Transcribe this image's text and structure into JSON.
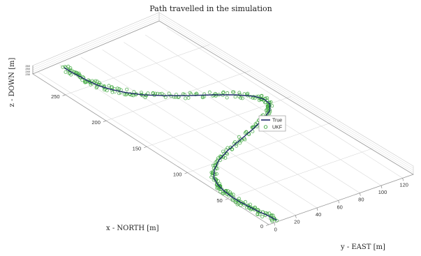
{
  "chart_data": {
    "type": "line3d",
    "title": "Path travelled in the simulation",
    "xlabel": "x - NORTH [m]",
    "ylabel": "y - EAST [m]",
    "zlabel": "z - DOWN [m]",
    "xlim": [
      0,
      290
    ],
    "ylim": [
      -5,
      130
    ],
    "zlim": [
      230,
      260
    ],
    "x_ticks": [
      "0",
      "50",
      "100",
      "150",
      "200",
      "250"
    ],
    "y_ticks": [
      "0",
      "20",
      "40",
      "60",
      "80",
      "100",
      "120"
    ],
    "z_ticks": [
      "230",
      "240",
      "250",
      "260"
    ],
    "grid": true,
    "legend_position": "center",
    "series": [
      {
        "name": "True",
        "color": "#1f2a6b",
        "style": "line",
        "points": [
          {
            "x": 2,
            "y": 4
          },
          {
            "x": 12,
            "y": 3
          },
          {
            "x": 22,
            "y": 1
          },
          {
            "x": 32,
            "y": 0
          },
          {
            "x": 42,
            "y": -1
          },
          {
            "x": 52,
            "y": -1
          },
          {
            "x": 62,
            "y": 0
          },
          {
            "x": 72,
            "y": 2
          },
          {
            "x": 82,
            "y": 6
          },
          {
            "x": 92,
            "y": 14
          },
          {
            "x": 102,
            "y": 26
          },
          {
            "x": 110,
            "y": 40
          },
          {
            "x": 118,
            "y": 58
          },
          {
            "x": 126,
            "y": 76
          },
          {
            "x": 134,
            "y": 92
          },
          {
            "x": 142,
            "y": 104
          },
          {
            "x": 150,
            "y": 110
          },
          {
            "x": 158,
            "y": 111
          },
          {
            "x": 166,
            "y": 108
          },
          {
            "x": 176,
            "y": 98
          },
          {
            "x": 186,
            "y": 84
          },
          {
            "x": 196,
            "y": 68
          },
          {
            "x": 206,
            "y": 54
          },
          {
            "x": 216,
            "y": 42
          },
          {
            "x": 226,
            "y": 34
          },
          {
            "x": 236,
            "y": 28
          },
          {
            "x": 246,
            "y": 24
          },
          {
            "x": 256,
            "y": 22
          },
          {
            "x": 266,
            "y": 21
          },
          {
            "x": 276,
            "y": 20
          },
          {
            "x": 284,
            "y": 20
          }
        ]
      },
      {
        "name": "UKF",
        "color": "#3aa63a",
        "style": "markers",
        "marker": "o"
      }
    ]
  }
}
